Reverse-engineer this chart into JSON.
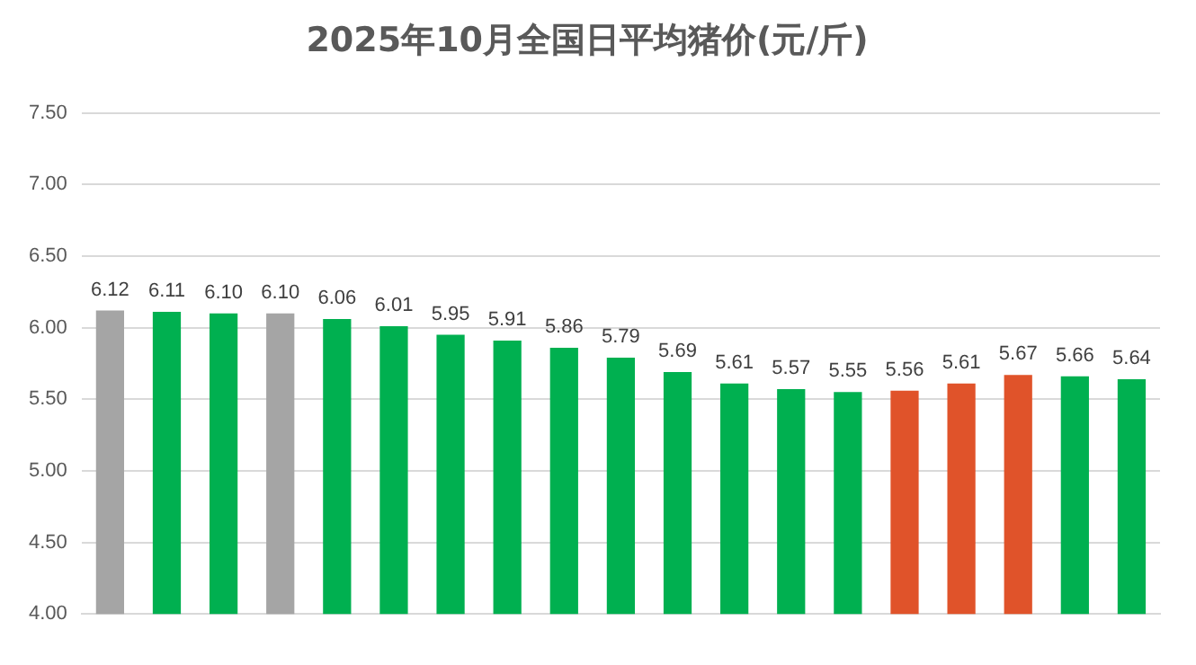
{
  "chart_data": {
    "type": "bar",
    "title": "2025年10月全国日平均猪价(元/斤)",
    "categories": [
      null,
      null,
      null,
      null,
      null,
      null,
      null,
      null,
      null,
      null,
      null,
      null,
      null,
      null,
      null,
      null,
      null,
      null,
      null
    ],
    "values": [
      6.12,
      6.11,
      6.1,
      6.1,
      6.06,
      6.01,
      5.95,
      5.91,
      5.86,
      5.79,
      5.69,
      5.61,
      5.57,
      5.55,
      5.56,
      5.61,
      5.67,
      5.66,
      5.64
    ],
    "value_labels": [
      "6.12",
      "6.11",
      "6.10",
      "6.10",
      "6.06",
      "6.01",
      "5.95",
      "5.91",
      "5.86",
      "5.79",
      "5.69",
      "5.61",
      "5.57",
      "5.55",
      "5.56",
      "5.61",
      "5.67",
      "5.66",
      "5.64"
    ],
    "colors": [
      "#a5a5a5",
      "#00b050",
      "#00b050",
      "#a5a5a5",
      "#00b050",
      "#00b050",
      "#00b050",
      "#00b050",
      "#00b050",
      "#00b050",
      "#00b050",
      "#00b050",
      "#00b050",
      "#00b050",
      "#e0532a",
      "#e0532a",
      "#e0532a",
      "#00b050",
      "#00b050"
    ],
    "ylim": [
      4,
      7.5
    ],
    "yticks": [
      {
        "value": 4,
        "label": "4.00"
      },
      {
        "value": 4.5,
        "label": "4.50"
      },
      {
        "value": 5,
        "label": "5.00"
      },
      {
        "value": 5.5,
        "label": "5.50"
      },
      {
        "value": 6,
        "label": "6.00"
      },
      {
        "value": 6.5,
        "label": "6.50"
      },
      {
        "value": 7,
        "label": "7.00"
      },
      {
        "value": 7.5,
        "label": "7.50"
      }
    ],
    "grid": "y"
  }
}
